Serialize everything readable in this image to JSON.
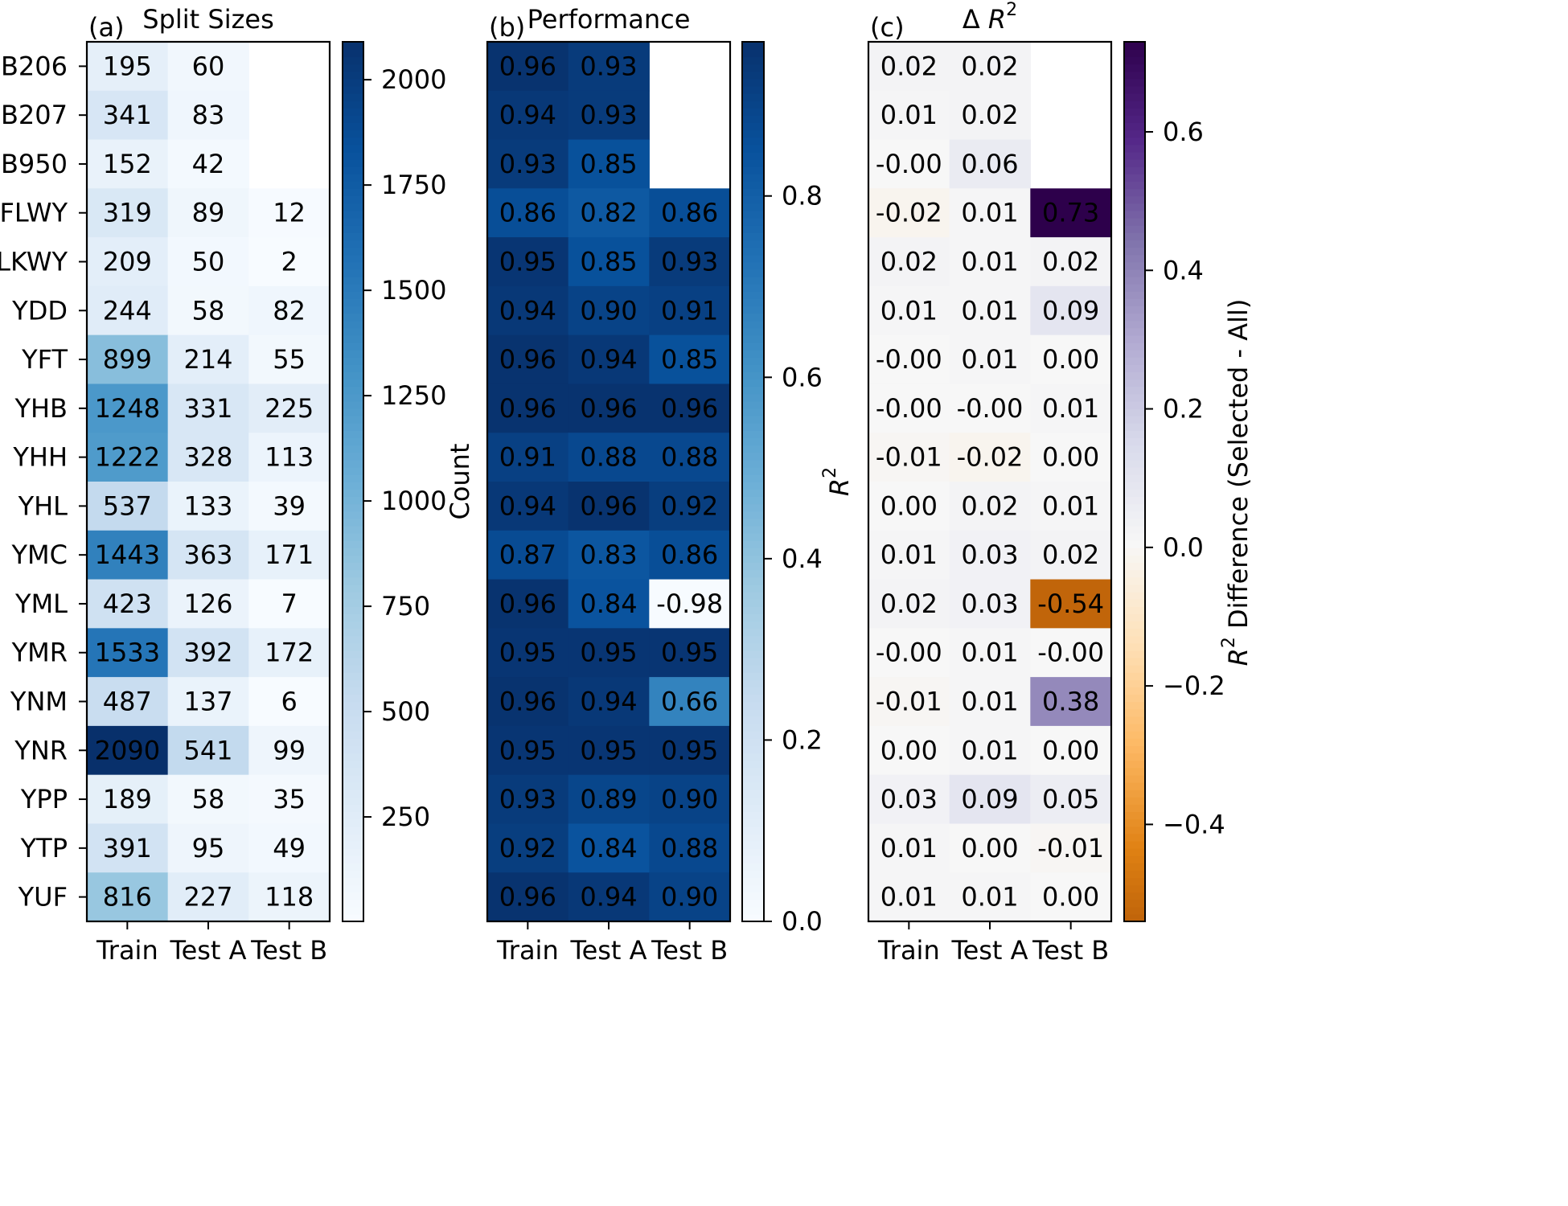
{
  "rows": [
    "B206",
    "B207",
    "B950",
    "FLWY",
    "LKWY",
    "YDD",
    "YFT",
    "YHB",
    "YHH",
    "YHL",
    "YMC",
    "YML",
    "YMR",
    "YNM",
    "YNR",
    "YPP",
    "YTP",
    "YUF"
  ],
  "columns": [
    "Train",
    "Test A",
    "Test B"
  ],
  "chart_data": [
    {
      "type": "heatmap",
      "panel_label": "(a)",
      "title": "Split Sizes",
      "colorbar_label": "Count",
      "colormap": "Blues",
      "vmin": 2,
      "vmax": 2090,
      "colorbar_ticks": [
        250,
        500,
        750,
        1000,
        1250,
        1500,
        1750,
        2000
      ],
      "values": [
        [
          195,
          60,
          null
        ],
        [
          341,
          83,
          null
        ],
        [
          152,
          42,
          null
        ],
        [
          319,
          89,
          12
        ],
        [
          209,
          50,
          2
        ],
        [
          244,
          58,
          82
        ],
        [
          899,
          214,
          55
        ],
        [
          1248,
          331,
          225
        ],
        [
          1222,
          328,
          113
        ],
        [
          537,
          133,
          39
        ],
        [
          1443,
          363,
          171
        ],
        [
          423,
          126,
          7
        ],
        [
          1533,
          392,
          172
        ],
        [
          487,
          137,
          6
        ],
        [
          2090,
          541,
          99
        ],
        [
          189,
          58,
          35
        ],
        [
          391,
          95,
          49
        ],
        [
          816,
          227,
          118
        ]
      ],
      "cell_labels": [
        [
          "195",
          "60",
          ""
        ],
        [
          "341",
          "83",
          ""
        ],
        [
          "152",
          "42",
          ""
        ],
        [
          "319",
          "89",
          "12"
        ],
        [
          "209",
          "50",
          "2"
        ],
        [
          "244",
          "58",
          "82"
        ],
        [
          "899",
          "214",
          "55"
        ],
        [
          "1248",
          "331",
          "225"
        ],
        [
          "1222",
          "328",
          "113"
        ],
        [
          "537",
          "133",
          "39"
        ],
        [
          "1443",
          "363",
          "171"
        ],
        [
          "423",
          "126",
          "7"
        ],
        [
          "1533",
          "392",
          "172"
        ],
        [
          "487",
          "137",
          "6"
        ],
        [
          "2090",
          "541",
          "99"
        ],
        [
          "189",
          "58",
          "35"
        ],
        [
          "391",
          "95",
          "49"
        ],
        [
          "816",
          "227",
          "118"
        ]
      ]
    },
    {
      "type": "heatmap",
      "panel_label": "(b)",
      "title": "Performance",
      "colorbar_label": "R²",
      "colormap": "Blues",
      "vmin": 0.0,
      "vmax": 0.97,
      "colorbar_ticks": [
        0.0,
        0.2,
        0.4,
        0.6,
        0.8
      ],
      "colorbar_tick_labels": [
        "0.0",
        "0.2",
        "0.4",
        "0.6",
        "0.8"
      ],
      "values": [
        [
          0.96,
          0.93,
          null
        ],
        [
          0.94,
          0.93,
          null
        ],
        [
          0.93,
          0.85,
          null
        ],
        [
          0.86,
          0.82,
          0.86
        ],
        [
          0.95,
          0.85,
          0.93
        ],
        [
          0.94,
          0.9,
          0.91
        ],
        [
          0.96,
          0.94,
          0.85
        ],
        [
          0.96,
          0.96,
          0.96
        ],
        [
          0.91,
          0.88,
          0.88
        ],
        [
          0.94,
          0.96,
          0.92
        ],
        [
          0.87,
          0.83,
          0.86
        ],
        [
          0.96,
          0.84,
          -0.98
        ],
        [
          0.95,
          0.95,
          0.95
        ],
        [
          0.96,
          0.94,
          0.66
        ],
        [
          0.95,
          0.95,
          0.95
        ],
        [
          0.93,
          0.89,
          0.9
        ],
        [
          0.92,
          0.84,
          0.88
        ],
        [
          0.96,
          0.94,
          0.9
        ]
      ],
      "cell_labels": [
        [
          "0.96",
          "0.93",
          ""
        ],
        [
          "0.94",
          "0.93",
          ""
        ],
        [
          "0.93",
          "0.85",
          ""
        ],
        [
          "0.86",
          "0.82",
          "0.86"
        ],
        [
          "0.95",
          "0.85",
          "0.93"
        ],
        [
          "0.94",
          "0.90",
          "0.91"
        ],
        [
          "0.96",
          "0.94",
          "0.85"
        ],
        [
          "0.96",
          "0.96",
          "0.96"
        ],
        [
          "0.91",
          "0.88",
          "0.88"
        ],
        [
          "0.94",
          "0.96",
          "0.92"
        ],
        [
          "0.87",
          "0.83",
          "0.86"
        ],
        [
          "0.96",
          "0.84",
          "-0.98"
        ],
        [
          "0.95",
          "0.95",
          "0.95"
        ],
        [
          "0.96",
          "0.94",
          "0.66"
        ],
        [
          "0.95",
          "0.95",
          "0.95"
        ],
        [
          "0.93",
          "0.89",
          "0.90"
        ],
        [
          "0.92",
          "0.84",
          "0.88"
        ],
        [
          "0.96",
          "0.94",
          "0.90"
        ]
      ]
    },
    {
      "type": "heatmap",
      "panel_label": "(c)",
      "title": "Δ R²",
      "colorbar_label": "R² Difference (Selected - All)",
      "colormap": "PuOr",
      "vmin": -0.54,
      "vmax": 0.73,
      "center": 0.0,
      "colorbar_ticks": [
        -0.4,
        -0.2,
        0.0,
        0.2,
        0.4,
        0.6
      ],
      "colorbar_tick_labels": [
        "−0.4",
        "−0.2",
        "0.0",
        "0.2",
        "0.4",
        "0.6"
      ],
      "values": [
        [
          0.02,
          0.02,
          null
        ],
        [
          0.01,
          0.02,
          null
        ],
        [
          0.0,
          0.06,
          null
        ],
        [
          -0.02,
          0.01,
          0.73
        ],
        [
          0.02,
          0.01,
          0.02
        ],
        [
          0.01,
          0.01,
          0.09
        ],
        [
          0.0,
          0.01,
          0.0
        ],
        [
          0.0,
          0.0,
          0.01
        ],
        [
          -0.01,
          -0.02,
          0.0
        ],
        [
          0.0,
          0.02,
          0.01
        ],
        [
          0.01,
          0.03,
          0.02
        ],
        [
          0.02,
          0.03,
          -0.54
        ],
        [
          0.0,
          0.01,
          0.0
        ],
        [
          -0.01,
          0.01,
          0.38
        ],
        [
          0.0,
          0.01,
          0.0
        ],
        [
          0.03,
          0.09,
          0.05
        ],
        [
          0.01,
          0.0,
          -0.01
        ],
        [
          0.01,
          0.01,
          0.0
        ]
      ],
      "cell_labels": [
        [
          "0.02",
          "0.02",
          ""
        ],
        [
          "0.01",
          "0.02",
          ""
        ],
        [
          "-0.00",
          "0.06",
          ""
        ],
        [
          "-0.02",
          "0.01",
          "0.73"
        ],
        [
          "0.02",
          "0.01",
          "0.02"
        ],
        [
          "0.01",
          "0.01",
          "0.09"
        ],
        [
          "-0.00",
          "0.01",
          "0.00"
        ],
        [
          "-0.00",
          "-0.00",
          "0.01"
        ],
        [
          "-0.01",
          "-0.02",
          "0.00"
        ],
        [
          "0.00",
          "0.02",
          "0.01"
        ],
        [
          "0.01",
          "0.03",
          "0.02"
        ],
        [
          "0.02",
          "0.03",
          "-0.54"
        ],
        [
          "-0.00",
          "0.01",
          "-0.00"
        ],
        [
          "-0.01",
          "0.01",
          "0.38"
        ],
        [
          "0.00",
          "0.01",
          "0.00"
        ],
        [
          "0.03",
          "0.09",
          "0.05"
        ],
        [
          "0.01",
          "0.00",
          "-0.01"
        ],
        [
          "0.01",
          "0.01",
          "0.00"
        ]
      ]
    }
  ]
}
